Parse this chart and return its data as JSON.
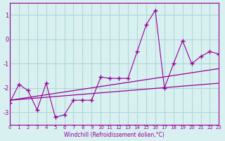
{
  "xlabel": "Windchill (Refroidissement éolien,°C)",
  "background_color": "#d8f0f0",
  "grid_color": "#b0d8d8",
  "line_color": "#990099",
  "xlim": [
    0,
    23
  ],
  "ylim": [
    -3.5,
    1.5
  ],
  "yticks": [
    -3,
    -2,
    -1,
    0,
    1
  ],
  "xticks": [
    0,
    1,
    2,
    3,
    4,
    5,
    6,
    7,
    8,
    9,
    10,
    11,
    12,
    13,
    14,
    15,
    16,
    17,
    18,
    19,
    20,
    21,
    22,
    23
  ],
  "trend1_x": [
    0,
    23
  ],
  "trend1_y": [
    -2.5,
    -1.2
  ],
  "trend2_x": [
    0,
    23
  ],
  "trend2_y": [
    -2.5,
    -1.8
  ],
  "zigzag_x": [
    0,
    1,
    2,
    3,
    4,
    5,
    6,
    7,
    8,
    9,
    10,
    11,
    12,
    13,
    14,
    15,
    16,
    17,
    18,
    19,
    20,
    21,
    22,
    23
  ],
  "zigzag_y": [
    -2.6,
    -1.85,
    -2.1,
    -2.9,
    -1.8,
    -3.2,
    -3.1,
    -2.5,
    -2.5,
    -2.5,
    -1.55,
    -1.6,
    -1.6,
    -1.6,
    -0.5,
    0.6,
    1.2,
    -2.0,
    -1.0,
    -0.05,
    -1.0,
    -0.7,
    -0.5,
    -0.6
  ]
}
